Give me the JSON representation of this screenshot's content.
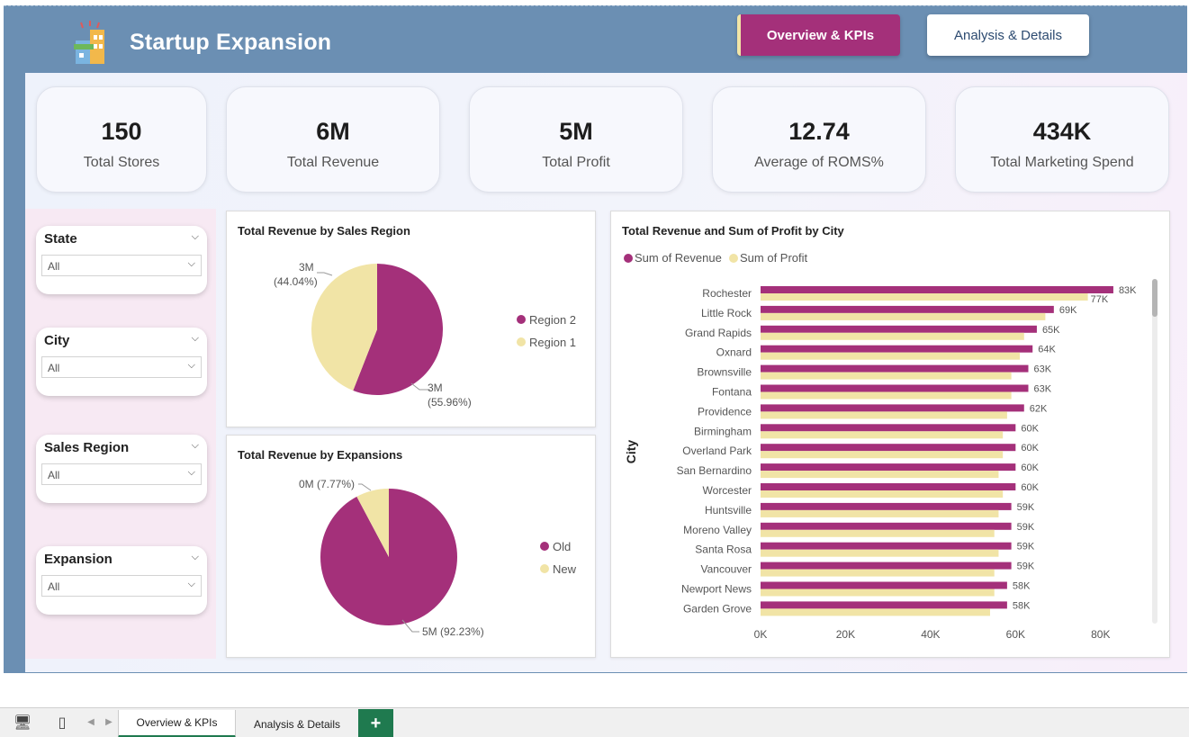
{
  "header": {
    "title": "Startup Expansion",
    "nav": [
      {
        "label": "Overview & KPIs",
        "active": true
      },
      {
        "label": "Analysis & Details",
        "active": false
      }
    ]
  },
  "kpis": [
    {
      "value": "150",
      "label": "Total Stores"
    },
    {
      "value": "6M",
      "label": "Total Revenue"
    },
    {
      "value": "5M",
      "label": "Total Profit"
    },
    {
      "value": "12.74",
      "label": "Average of ROMS%"
    },
    {
      "value": "434K",
      "label": "Total Marketing Spend"
    }
  ],
  "filters": [
    {
      "title": "State",
      "value": "All"
    },
    {
      "title": "City",
      "value": "All"
    },
    {
      "title": "Sales Region",
      "value": "All"
    },
    {
      "title": "Expansion",
      "value": "All"
    }
  ],
  "colors": {
    "primary": "#a4307a",
    "secondary": "#f1e4a6",
    "header": "#6b8fb3"
  },
  "chart_data": [
    {
      "type": "pie",
      "title": "Total Revenue by Sales Region",
      "labels": [
        "Region 2",
        "Region 1"
      ],
      "values": [
        55.96,
        44.04
      ],
      "data_labels": [
        {
          "value": "3M",
          "pct": "(55.96%)"
        },
        {
          "value": "3M",
          "pct": "(44.04%)"
        }
      ],
      "colors": [
        "#a4307a",
        "#f1e4a6"
      ],
      "legend_position": "right"
    },
    {
      "type": "pie",
      "title": "Total Revenue by Expansions",
      "labels": [
        "Old",
        "New"
      ],
      "values": [
        92.23,
        7.77
      ],
      "data_labels": [
        "5M (92.23%)",
        "0M (7.77%)"
      ],
      "colors": [
        "#a4307a",
        "#f1e4a6"
      ],
      "legend_position": "right"
    },
    {
      "type": "bar",
      "orientation": "horizontal",
      "title": "Total Revenue and Sum of Profit by City",
      "ylabel": "City",
      "xlim": [
        0,
        90000
      ],
      "xticks": [
        {
          "v": 0,
          "t": "0K"
        },
        {
          "v": 20000,
          "t": "20K"
        },
        {
          "v": 40000,
          "t": "40K"
        },
        {
          "v": 60000,
          "t": "60K"
        },
        {
          "v": 80000,
          "t": "80K"
        }
      ],
      "categories": [
        "Rochester",
        "Little Rock",
        "Grand Rapids",
        "Oxnard",
        "Brownsville",
        "Fontana",
        "Providence",
        "Birmingham",
        "Overland Park",
        "San Bernardino",
        "Worcester",
        "Huntsville",
        "Moreno Valley",
        "Santa Rosa",
        "Vancouver",
        "Newport News",
        "Garden Grove"
      ],
      "series": [
        {
          "name": "Sum of Revenue",
          "color": "#a4307a",
          "values": [
            83000,
            69000,
            65000,
            64000,
            63000,
            63000,
            62000,
            60000,
            60000,
            60000,
            60000,
            59000,
            59000,
            59000,
            59000,
            58000,
            58000
          ],
          "labels": [
            "83K",
            "69K",
            "65K",
            "64K",
            "63K",
            "63K",
            "62K",
            "60K",
            "60K",
            "60K",
            "60K",
            "59K",
            "59K",
            "59K",
            "59K",
            "58K",
            "58K"
          ]
        },
        {
          "name": "Sum of Profit",
          "color": "#f1e4a6",
          "values": [
            77000,
            67000,
            62000,
            61000,
            59000,
            59000,
            58000,
            57000,
            57000,
            56000,
            57000,
            56000,
            55000,
            56000,
            55000,
            55000,
            54000
          ],
          "labels": [
            "77K",
            "",
            "",
            "",
            "",
            "",
            "",
            "",
            "",
            "",
            "",
            "",
            "",
            "",
            "",
            "",
            ""
          ]
        }
      ],
      "legend_position": "top-left"
    }
  ],
  "tabs": {
    "sheets": [
      {
        "label": "Overview & KPIs",
        "active": true
      },
      {
        "label": "Analysis & Details",
        "active": false
      }
    ],
    "add_label": "+"
  }
}
